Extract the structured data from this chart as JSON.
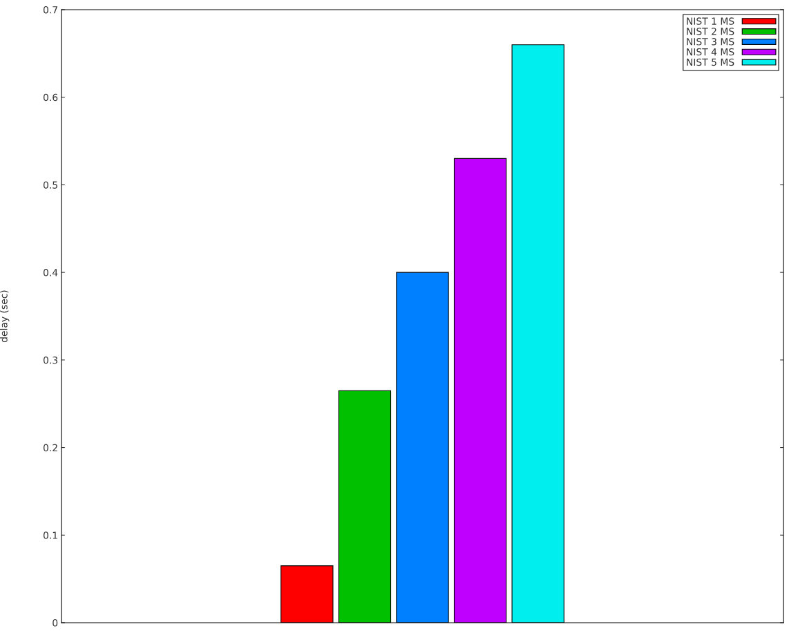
{
  "chart_data": {
    "type": "bar",
    "ylabel": "delay (sec)",
    "categories": [
      null
    ],
    "series": [
      {
        "name": "NIST 1 MS",
        "color": "#ff0000",
        "values": [
          0.065
        ]
      },
      {
        "name": "NIST 2 MS",
        "color": "#00c000",
        "values": [
          0.265
        ]
      },
      {
        "name": "NIST 3 MS",
        "color": "#0080ff",
        "values": [
          0.4
        ]
      },
      {
        "name": "NIST 4 MS",
        "color": "#c000ff",
        "values": [
          0.53
        ]
      },
      {
        "name": "NIST 5 MS",
        "color": "#00eeee",
        "values": [
          0.66
        ]
      }
    ],
    "ylim": [
      0,
      0.7
    ],
    "yticks": [
      0,
      0.1,
      0.2,
      0.3,
      0.4,
      0.5,
      0.6,
      0.7
    ],
    "grid": false,
    "legend": "top right"
  }
}
